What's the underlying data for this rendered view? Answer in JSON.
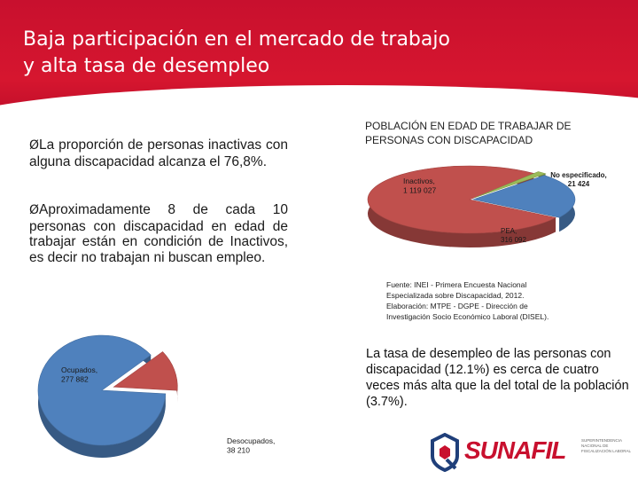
{
  "header": {
    "title_line1": "Baja participación en el mercado de trabajo",
    "title_line2": "y alta tasa de desempleo"
  },
  "bullets": [
    {
      "arrow": "Ø",
      "text": "La proporción de personas inactivas con alguna discapacidad alcanza el 76,8%."
    },
    {
      "arrow": "Ø",
      "text": "Aproximadamente 8 de cada 10 personas con discapacidad en edad de trabajar están en condición de Inactivos, es decir no trabajan ni buscan empleo."
    }
  ],
  "chart_title_line1": "POBLACIÓN EN EDAD DE TRABAJAR DE",
  "chart_title_line2": "PERSONAS CON DISCAPACIDAD",
  "source_lines": [
    "Fuente: INEI - Primera Encuesta Nacional",
    "Especializada sobre Discapacidad, 2012.",
    "Elaboración: MTPE - DGPE - Dirección de",
    "Investigación Socio Económico Laboral (DISEL)."
  ],
  "desempleo_text": "La tasa de desempleo de las personas con discapacidad (12.1%) es cerca de cuatro veces más alta que la del total de la población (3.7%).",
  "chart_data": [
    {
      "type": "pie",
      "title": "POBLACIÓN EN EDAD DE TRABAJAR DE PERSONAS CON DISCAPACIDAD",
      "labels": [
        "Inactivos,",
        "No especificado,",
        "PEA,"
      ],
      "values": [
        1119027,
        21424,
        316092
      ],
      "value_labels": [
        "1 119 027",
        "21 424",
        "316 092"
      ],
      "colors": [
        "#c0504d",
        "#9bbb59",
        "#4f81bd"
      ]
    },
    {
      "type": "pie",
      "labels": [
        "Ocupados,",
        "Desocupados,"
      ],
      "values": [
        277882,
        38210
      ],
      "value_labels": [
        "277 882",
        "38 210"
      ],
      "colors": [
        "#4f81bd",
        "#c0504d"
      ]
    }
  ],
  "logo": {
    "icon": "sunafil-q-icon",
    "name": "SUNAFIL",
    "subtitle": "SUPERINTENDENCIA NACIONAL DE FISCALIZACIÓN LABORAL"
  }
}
